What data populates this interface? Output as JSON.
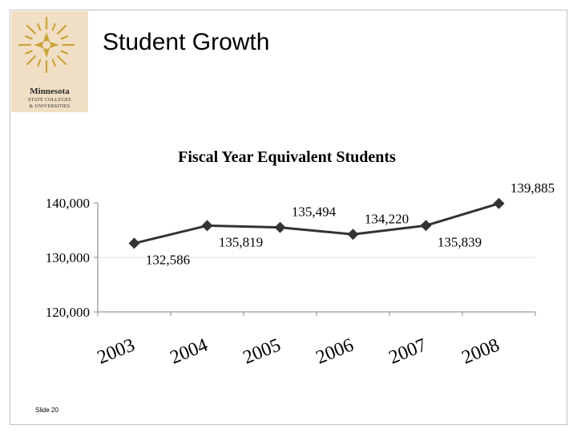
{
  "slide": {
    "title": "Student Growth",
    "slide_number": "Slide 20",
    "logo": {
      "line1": "Minnesota",
      "line2": "STATE COLLEGES",
      "line3": "& UNIVERSITIES",
      "icon": "star-burst-icon",
      "color": "#c9a43a"
    }
  },
  "chart_data": {
    "type": "line",
    "title": "Fiscal Year Equivalent Students",
    "categories": [
      "2003",
      "2004",
      "2005",
      "2006",
      "2007",
      "2008"
    ],
    "values": [
      132586,
      135819,
      135494,
      134220,
      135839,
      139885
    ],
    "data_labels": [
      "132,586",
      "135,819",
      "135,494",
      "134,220",
      "135,839",
      "139,885"
    ],
    "y_ticks": [
      "120,000",
      "130,000",
      "140,000"
    ],
    "ylim": [
      120000,
      140000
    ],
    "xlabel": "",
    "ylabel": "",
    "marker": "diamond",
    "line_color": "#333333"
  }
}
